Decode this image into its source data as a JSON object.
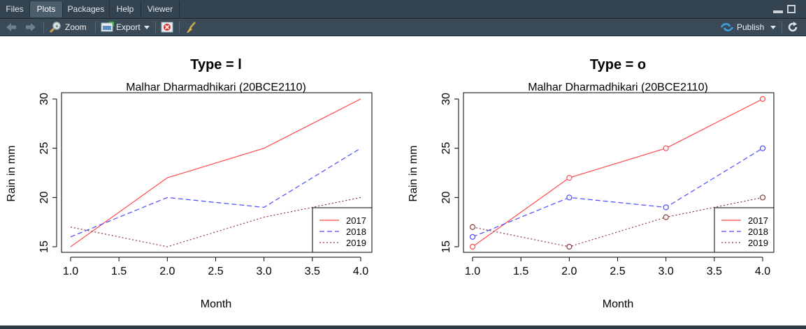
{
  "tabs": [
    {
      "label": "Files"
    },
    {
      "label": "Plots"
    },
    {
      "label": "Packages"
    },
    {
      "label": "Help"
    },
    {
      "label": "Viewer"
    }
  ],
  "toolbar": {
    "zoom_label": "Zoom",
    "export_label": "Export",
    "publish_label": "Publish"
  },
  "plots": {
    "left": {
      "title": "Type = l",
      "subtitle": "Malhar Dharmadhikari (20BCE2110)",
      "xlabel": "Month",
      "ylabel": "Rain in mm"
    },
    "right": {
      "title": "Type = o",
      "subtitle": "Malhar Dharmadhikari (20BCE2110)",
      "xlabel": "Month",
      "ylabel": "Rain in mm"
    }
  },
  "chart_data": [
    {
      "type": "line",
      "title": "Type = l",
      "subtitle": "Malhar Dharmadhikari (20BCE2110)",
      "xlabel": "Month",
      "ylabel": "Rain in mm",
      "x": [
        1,
        2,
        3,
        4
      ],
      "xticks": [
        "1.0",
        "1.5",
        "2.0",
        "2.5",
        "3.0",
        "3.5",
        "4.0"
      ],
      "yticks": [
        "15",
        "20",
        "25",
        "30"
      ],
      "xlim": [
        1,
        4
      ],
      "ylim": [
        15,
        30
      ],
      "grid": false,
      "legend_position": "bottom-right",
      "series": [
        {
          "name": "2017",
          "values": [
            15,
            22,
            25,
            30
          ],
          "color": "#ff4b4b",
          "dash": "solid"
        },
        {
          "name": "2018",
          "values": [
            16,
            20,
            19,
            25
          ],
          "color": "#4b4bff",
          "dash": "dashed"
        },
        {
          "name": "2019",
          "values": [
            17,
            15,
            18,
            20
          ],
          "color": "#8b3a3a",
          "dash": "dotted"
        }
      ]
    },
    {
      "type": "line",
      "title": "Type = o",
      "subtitle": "Malhar Dharmadhikari (20BCE2110)",
      "xlabel": "Month",
      "ylabel": "Rain in mm",
      "markers": true,
      "x": [
        1,
        2,
        3,
        4
      ],
      "xticks": [
        "1.0",
        "1.5",
        "2.0",
        "2.5",
        "3.0",
        "3.5",
        "4.0"
      ],
      "yticks": [
        "15",
        "20",
        "25",
        "30"
      ],
      "xlim": [
        1,
        4
      ],
      "ylim": [
        15,
        30
      ],
      "grid": false,
      "legend_position": "bottom-right",
      "series": [
        {
          "name": "2017",
          "values": [
            15,
            22,
            25,
            30
          ],
          "color": "#ff4b4b",
          "dash": "solid"
        },
        {
          "name": "2018",
          "values": [
            16,
            20,
            19,
            25
          ],
          "color": "#4b4bff",
          "dash": "dashed"
        },
        {
          "name": "2019",
          "values": [
            17,
            15,
            18,
            20
          ],
          "color": "#8b3a3a",
          "dash": "dotted"
        }
      ]
    }
  ]
}
